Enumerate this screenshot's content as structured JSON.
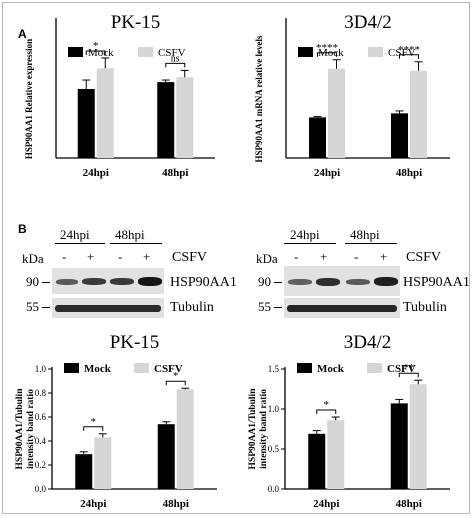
{
  "panels": {
    "a": "A",
    "b": "B"
  },
  "colors": {
    "mock": "#000000",
    "csfv": "#d6d6d6"
  },
  "blots": [
    {
      "groups": [
        "24hpi",
        "48hpi"
      ],
      "lanes": [
        "-",
        "+",
        "-",
        "+"
      ],
      "kda_label": "kDa",
      "treatment": "CSFV",
      "rows": [
        {
          "kda": "90",
          "protein": "HSP90AA1"
        },
        {
          "kda": "55",
          "protein": "Tubulin"
        }
      ]
    },
    {
      "groups": [
        "24hpi",
        "48hpi"
      ],
      "lanes": [
        "-",
        "+",
        "-",
        "+"
      ],
      "kda_label": "kDa",
      "treatment": "CSFV",
      "rows": [
        {
          "kda": "90",
          "protein": "HSP90AA1"
        },
        {
          "kda": "55",
          "protein": "Tubulin"
        }
      ]
    }
  ],
  "chart_data": [
    {
      "type": "bar",
      "title": "PK-15",
      "ylabel": "HSP90AA1 Relative expression",
      "xlabel": "",
      "categories": [
        "24hpi",
        "48hpi"
      ],
      "series": [
        {
          "name": "Mock",
          "values": [
            1.0,
            1.1
          ],
          "errors": [
            0.13,
            0.03
          ]
        },
        {
          "name": "CSFV",
          "values": [
            1.3,
            1.17
          ],
          "errors": [
            0.15,
            0.1
          ]
        }
      ],
      "ylim": [
        0,
        2.0
      ],
      "yticks": [],
      "legend": "top",
      "significance": [
        {
          "category": "24hpi",
          "label": "*"
        },
        {
          "category": "48hpi",
          "label": "ns"
        }
      ]
    },
    {
      "type": "bar",
      "title": "3D4/2",
      "ylabel": "HSP90AA1 mRNA relative levels",
      "xlabel": "",
      "categories": [
        "24hpi",
        "48hpi"
      ],
      "series": [
        {
          "name": "Mock",
          "values": [
            1.0,
            1.1
          ],
          "errors": [
            0.02,
            0.06
          ]
        },
        {
          "name": "CSFV",
          "values": [
            2.2,
            2.15
          ],
          "errors": [
            0.22,
            0.22
          ]
        }
      ],
      "ylim": [
        0,
        3.4
      ],
      "yticks": [],
      "legend": "top",
      "significance": [
        {
          "category": "24hpi",
          "label": "****"
        },
        {
          "category": "48hpi",
          "label": "****"
        }
      ]
    },
    {
      "type": "bar",
      "title": "PK-15",
      "ylabel": "HSP90AA1/Tubulin intensity band ratio",
      "xlabel": "",
      "categories": [
        "24hpi",
        "48hpi"
      ],
      "series": [
        {
          "name": "Mock",
          "values": [
            0.29,
            0.54
          ],
          "errors": [
            0.02,
            0.02
          ]
        },
        {
          "name": "CSFV",
          "values": [
            0.43,
            0.83
          ],
          "errors": [
            0.03,
            0.01
          ]
        }
      ],
      "ylim": [
        0,
        1.0
      ],
      "yticks": [
        "0.0",
        "0.2",
        "0.4",
        "0.6",
        "0.8",
        "1.0"
      ],
      "legend": "top",
      "significance": [
        {
          "category": "24hpi",
          "label": "*"
        },
        {
          "category": "48hpi",
          "label": "*"
        }
      ]
    },
    {
      "type": "bar",
      "title": "3D4/2",
      "ylabel": "HSP90AA1/Tubulin intensity band ratio",
      "xlabel": "",
      "categories": [
        "24hpi",
        "48hpi"
      ],
      "series": [
        {
          "name": "Mock",
          "values": [
            0.69,
            1.07
          ],
          "errors": [
            0.04,
            0.05
          ]
        },
        {
          "name": "CSFV",
          "values": [
            0.86,
            1.31
          ],
          "errors": [
            0.04,
            0.05
          ]
        }
      ],
      "ylim": [
        0,
        1.5
      ],
      "yticks": [
        "0.0",
        "0.5",
        "1.0",
        "1.5"
      ],
      "legend": "top",
      "significance": [
        {
          "category": "24hpi",
          "label": "*"
        },
        {
          "category": "48hpi",
          "label": "**"
        }
      ]
    }
  ]
}
